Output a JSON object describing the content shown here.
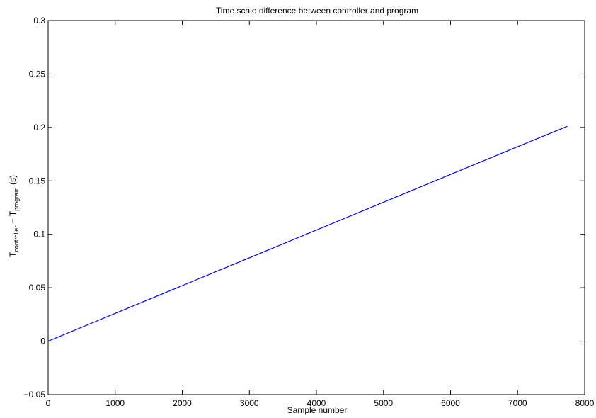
{
  "chart_data": {
    "type": "line",
    "title": "Time scale difference between controller and program",
    "xlabel": "Sample number",
    "ylabel": {
      "main1": "T",
      "sub1": "controller",
      "mid": " − T",
      "sub2": "program",
      "unit": " (s)"
    },
    "xlim": [
      0,
      8000
    ],
    "ylim": [
      -0.05,
      0.3
    ],
    "xticks": [
      0,
      1000,
      2000,
      3000,
      4000,
      5000,
      6000,
      7000,
      8000
    ],
    "xtick_labels": [
      "0",
      "1000",
      "2000",
      "3000",
      "4000",
      "5000",
      "6000",
      "7000",
      "8000"
    ],
    "yticks": [
      -0.05,
      0,
      0.05,
      0.1,
      0.15,
      0.2,
      0.25,
      0.3
    ],
    "ytick_labels": [
      "−0.05",
      "0",
      "0.05",
      "0.1",
      "0.15",
      "0.2",
      "0.25",
      "0.3"
    ],
    "grid": false,
    "series": [
      {
        "color": "#0000ff",
        "x": [
          0,
          1000,
          2000,
          3000,
          4000,
          5000,
          6000,
          7000,
          7740
        ],
        "y": [
          0.0,
          0.026,
          0.052,
          0.078,
          0.104,
          0.13,
          0.156,
          0.182,
          0.201
        ]
      }
    ]
  }
}
